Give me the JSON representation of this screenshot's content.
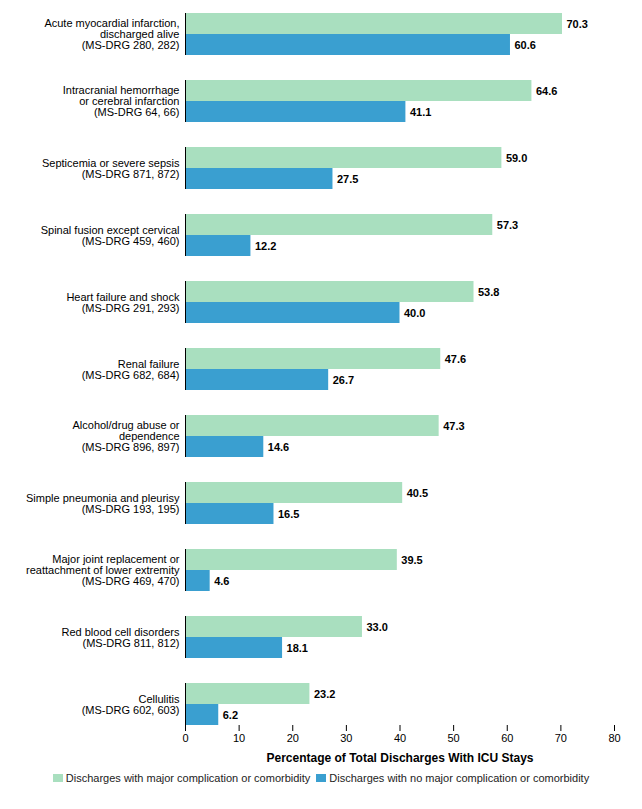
{
  "chart_data": {
    "type": "bar",
    "orientation": "horizontal",
    "categories": [
      "Acute myocardial infarction,\ndischarged alive\n(MS-DRG 280, 282)",
      "Intracranial hemorrhage\nor cerebral infarction\n(MS-DRG 64, 66)",
      "Septicemia or severe sepsis\n(MS-DRG 871, 872)",
      "Spinal fusion except cervical\n(MS-DRG 459, 460)",
      "Heart failure and shock\n(MS-DRG 291, 293)",
      "Renal failure\n(MS-DRG 682, 684)",
      "Alcohol/drug abuse or\ndependence\n(MS-DRG 896, 897)",
      "Simple pneumonia and pleurisy\n(MS-DRG 193, 195)",
      "Major joint replacement or\nreattachment of lower extremity\n(MS-DRG 469, 470)",
      "Red blood cell disorders\n(MS-DRG 811, 812)",
      "Cellulitis\n(MS-DRG 602, 603)"
    ],
    "series": [
      {
        "name": "Discharges with major complication or comorbidity",
        "color": "#a9dfbf",
        "values": [
          70.3,
          64.6,
          59.0,
          57.3,
          53.8,
          47.6,
          47.3,
          40.5,
          39.5,
          33.0,
          23.2
        ],
        "value_labels": [
          "70.3",
          "64.6",
          "59.0",
          "57.3",
          "53.8",
          "47.6",
          "47.3",
          "40.5",
          "39.5",
          "33.0",
          "23.2"
        ]
      },
      {
        "name": "Discharges with no major complication or comorbidity",
        "color": "#3a9fd0",
        "values": [
          60.6,
          41.1,
          27.5,
          12.2,
          40.0,
          26.7,
          14.6,
          16.5,
          4.6,
          18.1,
          6.2
        ],
        "value_labels": [
          "60.6",
          "41.1",
          "27.5",
          "12.2",
          "40.0",
          "26.7",
          "14.6",
          "16.5",
          "4.6",
          "18.1",
          "6.2"
        ]
      }
    ],
    "x_label": "Percentage of Total Discharges With ICU Stays",
    "xlim": [
      0,
      80
    ],
    "xticks": [
      0,
      10,
      20,
      30,
      40,
      50,
      60,
      70,
      80
    ],
    "grid": false,
    "data_labels": true,
    "legend": "bottom"
  }
}
